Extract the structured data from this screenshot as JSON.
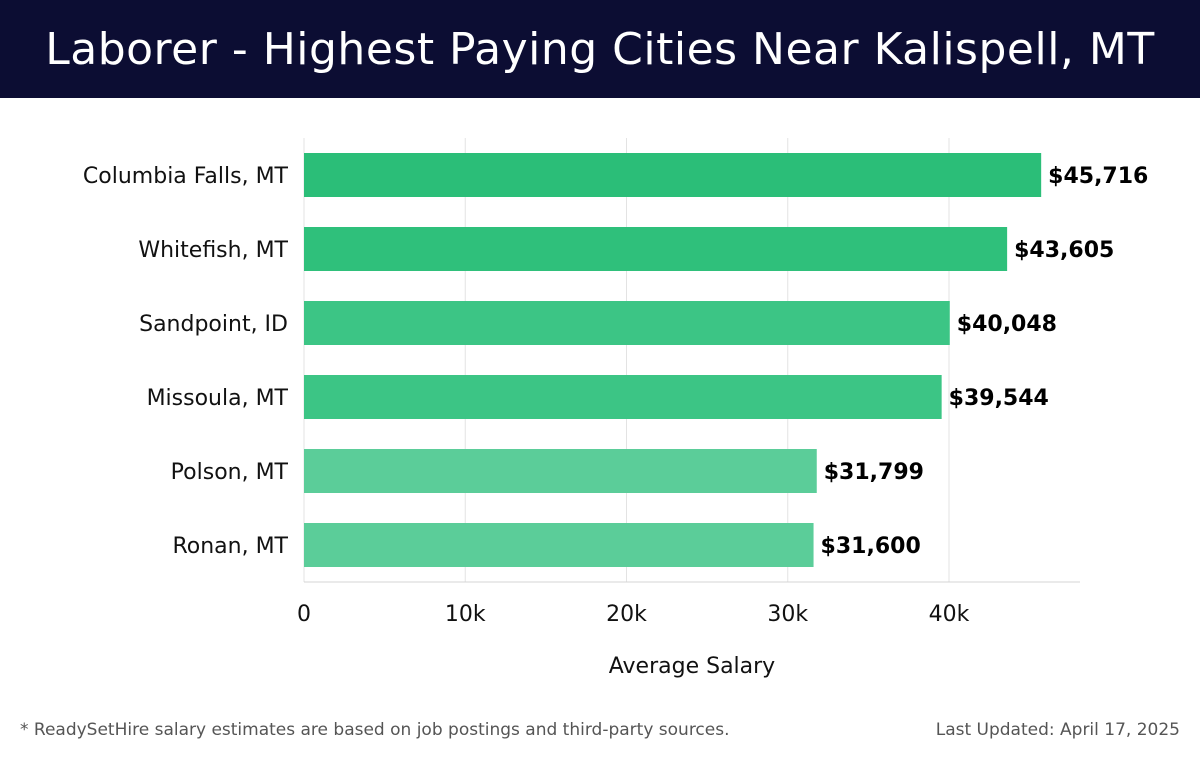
{
  "header": {
    "title": "Laborer - Highest Paying Cities Near Kalispell, MT"
  },
  "chart_data": {
    "type": "bar",
    "orientation": "horizontal",
    "title": "Laborer - Highest Paying Cities Near Kalispell, MT",
    "categories": [
      "Columbia Falls, MT",
      "Whitefish, MT",
      "Sandpoint, ID",
      "Missoula, MT",
      "Polson, MT",
      "Ronan, MT"
    ],
    "values": [
      45716,
      43605,
      40048,
      39544,
      31799,
      31600
    ],
    "value_labels": [
      "$45,716",
      "$43,605",
      "$40,048",
      "$39,544",
      "$31,799",
      "$31,600"
    ],
    "bar_colors": [
      "#2bbe78",
      "#2fc07b",
      "#3cc585",
      "#3cc585",
      "#5bcd99",
      "#5bcd99"
    ],
    "xlabel": "Average Salary",
    "ylabel": "",
    "xlim": [
      0,
      48000
    ],
    "x_ticks": [
      0,
      10000,
      20000,
      30000,
      40000
    ],
    "x_tick_labels": [
      "0",
      "10k",
      "20k",
      "30k",
      "40k"
    ],
    "grid": true
  },
  "footer": {
    "note": "* ReadySetHire salary estimates are based on job postings and third-party sources.",
    "updated": "Last Updated: April 17, 2025"
  }
}
